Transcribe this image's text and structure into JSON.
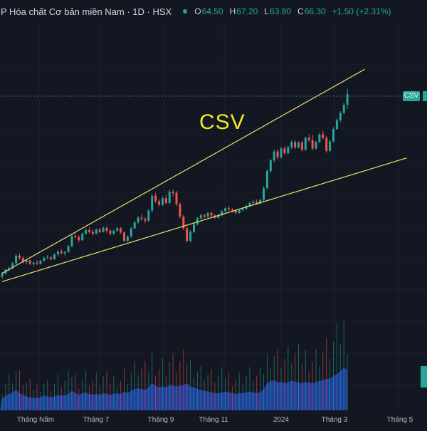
{
  "header": {
    "title": "P Hóa chất Cơ bản miền Nam · 1D · HSX",
    "open_label": "O",
    "open": "64.50",
    "high_label": "H",
    "high": "67.20",
    "low_label": "L",
    "low": "63.80",
    "close_label": "C",
    "close": "66.30",
    "change": "+1.50 (+2.31%)"
  },
  "price_tag": "CSV",
  "annotation": "CSV",
  "colors": {
    "background": "#131722",
    "up": "#26a69a",
    "down": "#ef5350",
    "trendline": "#e8e36c",
    "annotation": "#f5e62c",
    "volume": "#2962ff"
  },
  "chart_data": {
    "type": "candlestick",
    "grid": true,
    "x_tick_labels": [
      "Tháng Năm",
      "Tháng 7",
      "Tháng 9",
      "Tháng 11",
      "2024",
      "Tháng 3",
      "Tháng 5"
    ],
    "ohlc": [
      [
        35.4,
        36.2,
        35.1,
        36.0
      ],
      [
        36.0,
        36.8,
        35.8,
        36.6
      ],
      [
        36.6,
        37.2,
        36.3,
        36.9
      ],
      [
        36.9,
        37.9,
        36.7,
        37.7
      ],
      [
        37.7,
        39.2,
        37.5,
        39.0
      ],
      [
        39.0,
        39.4,
        38.3,
        38.6
      ],
      [
        38.6,
        38.9,
        37.7,
        37.9
      ],
      [
        37.9,
        38.4,
        37.6,
        38.2
      ],
      [
        38.2,
        38.3,
        37.4,
        37.6
      ],
      [
        37.6,
        38.0,
        37.2,
        37.8
      ],
      [
        37.8,
        38.2,
        37.4,
        37.6
      ],
      [
        37.6,
        38.3,
        37.5,
        38.1
      ],
      [
        38.1,
        38.8,
        38.0,
        38.6
      ],
      [
        38.6,
        39.1,
        38.4,
        38.7
      ],
      [
        38.7,
        38.9,
        38.2,
        38.4
      ],
      [
        38.4,
        39.4,
        38.3,
        39.2
      ],
      [
        39.2,
        39.9,
        39.0,
        39.7
      ],
      [
        39.7,
        40.1,
        39.2,
        39.4
      ],
      [
        39.4,
        39.8,
        39.0,
        39.6
      ],
      [
        39.6,
        40.8,
        39.5,
        40.6
      ],
      [
        40.6,
        42.6,
        40.4,
        42.3
      ],
      [
        42.3,
        42.9,
        41.9,
        42.1
      ],
      [
        42.1,
        42.4,
        41.2,
        41.6
      ],
      [
        41.6,
        42.9,
        41.5,
        42.7
      ],
      [
        42.7,
        43.6,
        42.5,
        43.3
      ],
      [
        43.3,
        43.8,
        42.7,
        43.0
      ],
      [
        43.0,
        43.4,
        42.4,
        42.7
      ],
      [
        42.7,
        43.6,
        42.6,
        43.4
      ],
      [
        43.4,
        43.7,
        42.8,
        43.0
      ],
      [
        43.0,
        43.9,
        42.9,
        43.7
      ],
      [
        43.7,
        44.0,
        42.9,
        43.2
      ],
      [
        43.2,
        43.5,
        42.4,
        42.7
      ],
      [
        42.7,
        43.4,
        42.5,
        43.2
      ],
      [
        43.2,
        43.9,
        43.0,
        43.6
      ],
      [
        43.6,
        43.8,
        42.7,
        42.9
      ],
      [
        42.9,
        43.1,
        41.3,
        41.5
      ],
      [
        41.5,
        42.4,
        41.3,
        42.2
      ],
      [
        42.2,
        43.9,
        42.0,
        43.6
      ],
      [
        43.6,
        44.9,
        43.4,
        44.6
      ],
      [
        44.6,
        45.7,
        44.4,
        45.4
      ],
      [
        45.4,
        46.0,
        44.9,
        45.2
      ],
      [
        45.2,
        45.5,
        44.5,
        44.9
      ],
      [
        44.9,
        46.9,
        44.7,
        46.6
      ],
      [
        46.6,
        49.4,
        46.3,
        49.1
      ],
      [
        49.1,
        49.6,
        47.9,
        48.2
      ],
      [
        48.2,
        48.5,
        47.3,
        47.6
      ],
      [
        47.6,
        49.0,
        47.4,
        48.7
      ],
      [
        48.7,
        49.3,
        47.6,
        47.9
      ],
      [
        47.9,
        50.1,
        47.7,
        49.8
      ],
      [
        49.8,
        50.2,
        49.0,
        49.6
      ],
      [
        49.6,
        49.9,
        47.4,
        47.7
      ],
      [
        47.7,
        47.9,
        45.3,
        45.6
      ],
      [
        45.6,
        45.9,
        43.3,
        43.6
      ],
      [
        43.6,
        43.9,
        41.2,
        41.5
      ],
      [
        41.5,
        43.3,
        41.2,
        43.0
      ],
      [
        43.0,
        44.6,
        42.8,
        44.3
      ],
      [
        44.3,
        45.5,
        44.1,
        45.3
      ],
      [
        45.3,
        46.1,
        45.1,
        45.8
      ],
      [
        45.8,
        46.1,
        45.3,
        45.6
      ],
      [
        45.6,
        46.4,
        45.4,
        46.2
      ],
      [
        46.2,
        46.5,
        45.5,
        45.8
      ],
      [
        45.8,
        46.0,
        45.2,
        45.4
      ],
      [
        45.4,
        46.0,
        45.2,
        45.8
      ],
      [
        45.8,
        46.7,
        45.6,
        46.5
      ],
      [
        46.5,
        47.2,
        46.3,
        47.0
      ],
      [
        47.0,
        47.4,
        46.6,
        46.8
      ],
      [
        46.8,
        47.0,
        46.3,
        46.6
      ],
      [
        46.6,
        46.8,
        46.0,
        46.2
      ],
      [
        46.2,
        46.9,
        46.1,
        46.7
      ],
      [
        46.7,
        47.1,
        46.4,
        46.9
      ],
      [
        46.9,
        47.6,
        46.7,
        47.4
      ],
      [
        47.4,
        48.1,
        47.2,
        47.9
      ],
      [
        47.9,
        48.4,
        47.6,
        48.1
      ],
      [
        48.1,
        48.5,
        47.6,
        47.8
      ],
      [
        47.8,
        48.6,
        47.7,
        48.4
      ],
      [
        48.4,
        50.7,
        48.2,
        50.4
      ],
      [
        50.4,
        53.6,
        50.2,
        53.3
      ],
      [
        53.3,
        55.4,
        52.9,
        55.1
      ],
      [
        55.1,
        56.9,
        54.7,
        56.6
      ],
      [
        56.6,
        57.0,
        55.3,
        55.6
      ],
      [
        55.6,
        57.4,
        55.4,
        57.1
      ],
      [
        57.1,
        57.5,
        56.0,
        56.3
      ],
      [
        56.3,
        57.6,
        56.1,
        57.3
      ],
      [
        57.3,
        58.5,
        57.0,
        58.2
      ],
      [
        58.2,
        58.6,
        57.0,
        57.3
      ],
      [
        57.3,
        58.3,
        57.1,
        58.1
      ],
      [
        58.1,
        58.4,
        56.6,
        56.9
      ],
      [
        56.9,
        59.1,
        56.7,
        58.9
      ],
      [
        58.9,
        59.5,
        58.2,
        58.5
      ],
      [
        58.5,
        59.4,
        56.8,
        57.1
      ],
      [
        57.1,
        58.4,
        56.9,
        58.2
      ],
      [
        58.2,
        59.8,
        58.0,
        59.5
      ],
      [
        59.5,
        60.1,
        58.6,
        58.9
      ],
      [
        58.9,
        59.2,
        56.4,
        56.7
      ],
      [
        56.7,
        58.6,
        56.5,
        58.3
      ],
      [
        58.3,
        60.7,
        58.1,
        60.4
      ],
      [
        60.4,
        62.2,
        60.2,
        61.9
      ],
      [
        61.9,
        63.4,
        61.6,
        63.1
      ],
      [
        63.1,
        64.9,
        62.9,
        64.5
      ],
      [
        64.5,
        67.2,
        63.8,
        66.3
      ]
    ],
    "volume": [
      14,
      18,
      20,
      22,
      25,
      21,
      19,
      17,
      16,
      15,
      15,
      16,
      18,
      17,
      16,
      17,
      19,
      18,
      18,
      20,
      24,
      21,
      19,
      21,
      22,
      20,
      19,
      20,
      19,
      21,
      20,
      19,
      20,
      21,
      20,
      23,
      21,
      24,
      26,
      27,
      26,
      25,
      28,
      33,
      30,
      28,
      29,
      28,
      31,
      30,
      29,
      30,
      31,
      33,
      29,
      28,
      26,
      25,
      24,
      23,
      22,
      21,
      21,
      22,
      23,
      22,
      21,
      20,
      21,
      21,
      22,
      23,
      22,
      21,
      22,
      26,
      33,
      36,
      37,
      34,
      35,
      33,
      34,
      36,
      35,
      34,
      33,
      35,
      34,
      33,
      34,
      36,
      37,
      38,
      39,
      42,
      44,
      48,
      52,
      49
    ],
    "trendlines": [
      {
        "from": {
          "bar": 0,
          "price": 36.0
        },
        "to": {
          "bar": 104,
          "price": 70.5
        }
      },
      {
        "from": {
          "bar": 0,
          "price": 34.6
        },
        "to": {
          "bar": 116,
          "price": 55.5
        }
      }
    ],
    "ylim": [
      30,
      75
    ]
  }
}
